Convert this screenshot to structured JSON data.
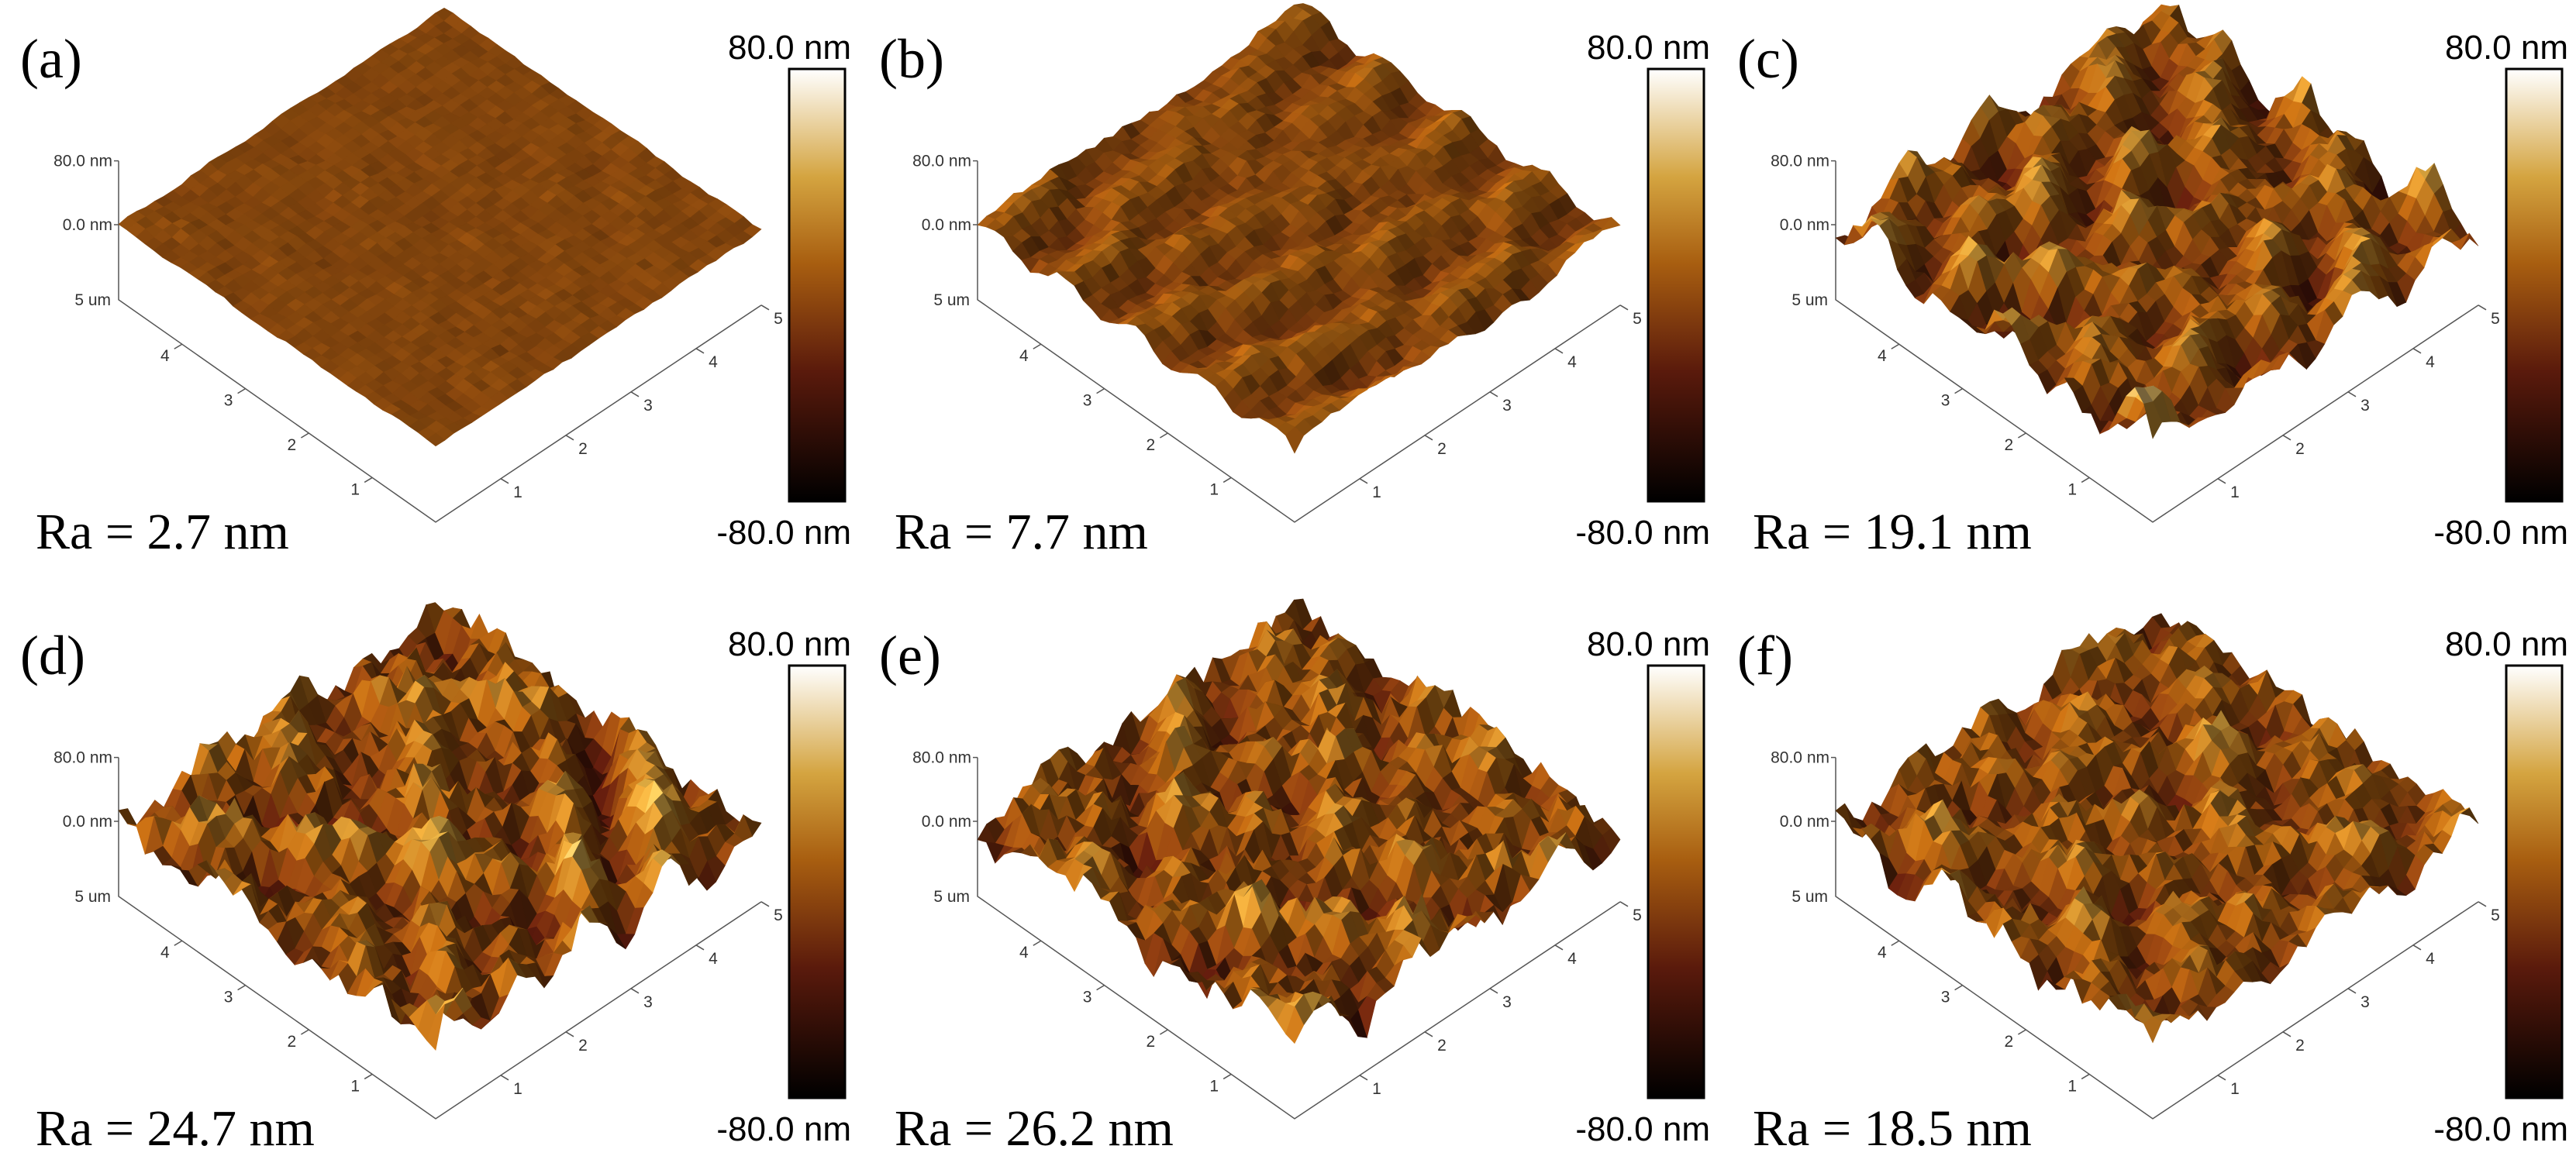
{
  "panels": [
    {
      "label": "(a)",
      "roughness": "Ra = 2.7 nm",
      "scale_max": "80.0 nm",
      "scale_min": "-80.0 nm",
      "z_max": "80.0 nm",
      "z_zero": "0.0 nm",
      "y_extent": "5 um",
      "y_ticks": [
        "4",
        "3",
        "2",
        "1"
      ],
      "x_ticks": [
        "1",
        "2",
        "3",
        "4",
        "5"
      ]
    },
    {
      "label": "(b)",
      "roughness": "Ra = 7.7 nm",
      "scale_max": "80.0 nm",
      "scale_min": "-80.0 nm",
      "z_max": "80.0 nm",
      "z_zero": "0.0 nm",
      "y_extent": "5 um",
      "y_ticks": [
        "4",
        "3",
        "2",
        "1"
      ],
      "x_ticks": [
        "1",
        "2",
        "3",
        "4",
        "5"
      ]
    },
    {
      "label": "(c)",
      "roughness": "Ra = 19.1 nm",
      "scale_max": "80.0 nm",
      "scale_min": "-80.0 nm",
      "z_max": "80.0 nm",
      "z_zero": "0.0 nm",
      "y_extent": "5 um",
      "y_ticks": [
        "4",
        "3",
        "2",
        "1"
      ],
      "x_ticks": [
        "1",
        "2",
        "3",
        "4",
        "5"
      ]
    },
    {
      "label": "(d)",
      "roughness": "Ra = 24.7 nm",
      "scale_max": "80.0 nm",
      "scale_min": "-80.0 nm",
      "z_max": "80.0 nm",
      "z_zero": "0.0 nm",
      "y_extent": "5 um",
      "y_ticks": [
        "4",
        "3",
        "2",
        "1"
      ],
      "x_ticks": [
        "1",
        "2",
        "3",
        "4",
        "5"
      ]
    },
    {
      "label": "(e)",
      "roughness": "Ra = 26.2 nm",
      "scale_max": "80.0 nm",
      "scale_min": "-80.0 nm",
      "z_max": "80.0 nm",
      "z_zero": "0.0 nm",
      "y_extent": "5 um",
      "y_ticks": [
        "4",
        "3",
        "2",
        "1"
      ],
      "x_ticks": [
        "1",
        "2",
        "3",
        "4",
        "5"
      ]
    },
    {
      "label": "(f)",
      "roughness": "Ra = 18.5 nm",
      "scale_max": "80.0 nm",
      "scale_min": "-80.0 nm",
      "z_max": "80.0 nm",
      "z_zero": "0.0 nm",
      "y_extent": "5 um",
      "y_ticks": [
        "4",
        "3",
        "2",
        "1"
      ],
      "x_ticks": [
        "1",
        "2",
        "3",
        "4",
        "5"
      ]
    }
  ]
}
